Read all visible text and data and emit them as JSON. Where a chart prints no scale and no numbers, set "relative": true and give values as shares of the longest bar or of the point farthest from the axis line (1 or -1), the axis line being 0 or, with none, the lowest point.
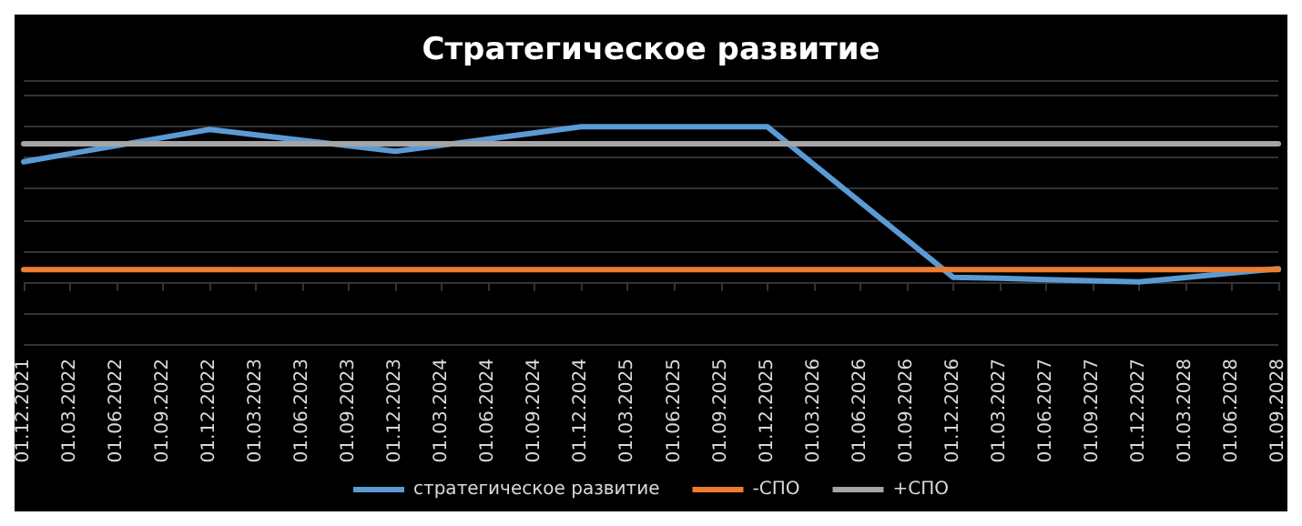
{
  "chart_data": {
    "type": "line",
    "title": "Стратегическое развитие",
    "relative": true,
    "grid": "y",
    "legend": "bottom",
    "marker": "none",
    "line_style": "solid",
    "categories": [
      "01.12.2021",
      "01.03.2022",
      "01.06.2022",
      "01.09.2022",
      "01.12.2022",
      "01.03.2023",
      "01.06.2023",
      "01.09.2023",
      "01.12.2023",
      "01.03.2024",
      "01.06.2024",
      "01.09.2024",
      "01.12.2024",
      "01.03.2025",
      "01.06.2025",
      "01.09.2025",
      "01.12.2025",
      "01.03.2026",
      "01.06.2026",
      "01.09.2026",
      "01.12.2026",
      "01.03.2027",
      "01.06.2027",
      "01.09.2027",
      "01.12.2027",
      "01.03.2028",
      "01.06.2028",
      "01.09.2028"
    ],
    "series": [
      {
        "name": "стратегическое развитие",
        "color": "#5b9bd5",
        "values": [
          0.774,
          0.826,
          0.878,
          0.93,
          0.982,
          0.947,
          0.912,
          0.876,
          0.841,
          0.881,
          0.92,
          0.96,
          1,
          1,
          1,
          1,
          1,
          0.758,
          0.515,
          0.273,
          0.03,
          0.023,
          0.015,
          0.008,
          0,
          0.028,
          0.057,
          0.085
        ]
      },
      {
        "name": "-СПО",
        "color": "#ed7d31",
        "values": [
          0.079,
          0.079,
          0.079,
          0.079,
          0.079,
          0.079,
          0.079,
          0.079,
          0.079,
          0.079,
          0.079,
          0.079,
          0.079,
          0.079,
          0.079,
          0.079,
          0.079,
          0.079,
          0.079,
          0.079,
          0.079,
          0.079,
          0.079,
          0.079,
          0.079,
          0.079,
          0.079,
          0.079
        ]
      },
      {
        "name": "+СПО",
        "color": "#a5a5a5",
        "values": [
          0.89,
          0.89,
          0.89,
          0.89,
          0.89,
          0.89,
          0.89,
          0.89,
          0.89,
          0.89,
          0.89,
          0.89,
          0.89,
          0.89,
          0.89,
          0.89,
          0.89,
          0.89,
          0.89,
          0.89,
          0.89,
          0.89,
          0.89,
          0.89,
          0.89,
          0.89,
          0.89,
          0.89
        ]
      }
    ]
  }
}
